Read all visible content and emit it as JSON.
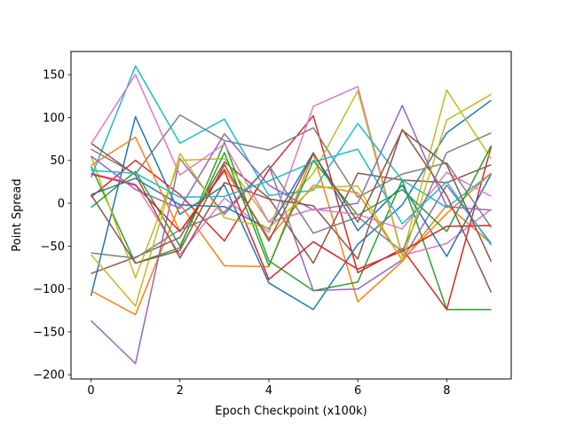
{
  "chart_data": {
    "type": "line",
    "title": "",
    "xlabel": "Epoch Checkpoint (x100k)",
    "ylabel": "Point Spread",
    "xlim": [
      -0.45,
      9.45
    ],
    "ylim": [
      -205,
      177
    ],
    "x_ticks": [
      0,
      2,
      4,
      6,
      8
    ],
    "y_ticks": [
      -200,
      -150,
      -100,
      -50,
      0,
      50,
      100,
      150
    ],
    "grid": false,
    "legend": "none",
    "x": [
      0,
      1,
      2,
      3,
      4,
      5,
      6,
      7,
      8,
      9
    ],
    "series": [
      {
        "color": "#1f77b4",
        "values": [
          -108,
          101,
          -13,
          21,
          -93,
          -124,
          -48,
          -2,
          82,
          120
        ]
      },
      {
        "color": "#ff7f0e",
        "values": [
          -102,
          -130,
          -1,
          -73,
          -74,
          58,
          -115,
          -68,
          -2,
          -47
        ]
      },
      {
        "color": "#2ca02c",
        "values": [
          43,
          -70,
          -52,
          71,
          -67,
          -102,
          -92,
          27,
          -124,
          -124
        ]
      },
      {
        "color": "#d62728",
        "values": [
          7,
          50,
          10,
          -44,
          39,
          102,
          -81,
          -53,
          -124,
          66
        ]
      },
      {
        "color": "#9467bd",
        "values": [
          -137,
          -187,
          52,
          -13,
          44,
          -102,
          -100,
          -66,
          21,
          -47
        ]
      },
      {
        "color": "#8c564b",
        "values": [
          -82,
          -63,
          -40,
          48,
          6,
          -70,
          35,
          27,
          24,
          45
        ]
      },
      {
        "color": "#e377c2",
        "values": [
          35,
          22,
          -60,
          6,
          -34,
          113,
          136,
          -61,
          -47,
          -7
        ]
      },
      {
        "color": "#7f7f7f",
        "values": [
          63,
          34,
          103,
          73,
          62,
          88,
          7,
          34,
          47,
          -28
        ]
      },
      {
        "color": "#bcbd22",
        "values": [
          55,
          -87,
          50,
          52,
          -22,
          35,
          131,
          -62,
          132,
          52
        ]
      },
      {
        "color": "#17becf",
        "values": [
          30,
          160,
          70,
          98,
          9,
          15,
          93,
          27,
          -5,
          35
        ]
      },
      {
        "color": "#1f77b4",
        "values": [
          10,
          29,
          -2,
          -4,
          -30,
          59,
          -32,
          21,
          -62,
          34
        ]
      },
      {
        "color": "#ff7f0e",
        "values": [
          44,
          77,
          -33,
          40,
          -41,
          21,
          12,
          -66,
          -12,
          35
        ]
      },
      {
        "color": "#2ca02c",
        "values": [
          -5,
          37,
          -50,
          59,
          -73,
          50,
          -14,
          16,
          -33,
          67
        ]
      },
      {
        "color": "#d62728",
        "values": [
          34,
          21,
          -33,
          38,
          -89,
          -45,
          -77,
          -56,
          -27,
          -26
        ]
      },
      {
        "color": "#9467bd",
        "values": [
          55,
          16,
          -6,
          81,
          21,
          -8,
          0,
          114,
          -4,
          -8
        ]
      },
      {
        "color": "#8c564b",
        "values": [
          70,
          33,
          -64,
          24,
          5,
          -3,
          -65,
          86,
          9,
          -104
        ]
      },
      {
        "color": "#e377c2",
        "values": [
          69,
          150,
          33,
          69,
          -22,
          -7,
          -13,
          -30,
          36,
          8
        ]
      },
      {
        "color": "#7f7f7f",
        "values": [
          -58,
          -64,
          -31,
          -10,
          44,
          -35,
          -16,
          -56,
          59,
          82
        ]
      },
      {
        "color": "#bcbd22",
        "values": [
          -60,
          -120,
          58,
          -17,
          -29,
          18,
          20,
          -67,
          97,
          127
        ]
      },
      {
        "color": "#17becf",
        "values": [
          38,
          35,
          7,
          8,
          26,
          48,
          63,
          -24,
          25,
          -49
        ]
      },
      {
        "color": "#8c564b",
        "values": [
          10,
          -70,
          -55,
          45,
          -44,
          58,
          -22,
          85,
          45,
          -68
        ]
      }
    ]
  }
}
